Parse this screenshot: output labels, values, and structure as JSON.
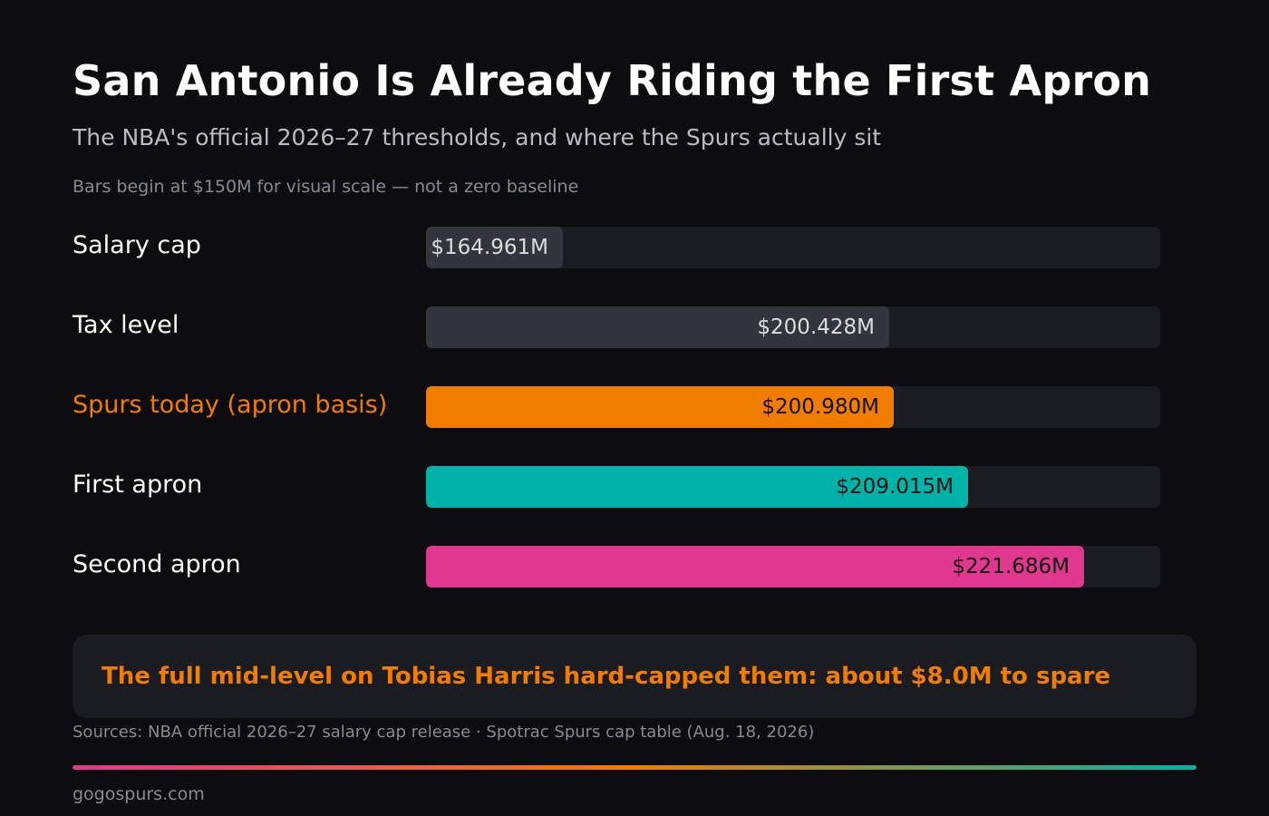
{
  "chart_data": {
    "type": "bar",
    "orientation": "horizontal",
    "title": "San Antonio Is Already Riding the First Apron",
    "subtitle": "The NBA's official 2026–27 thresholds, and where the Spurs actually sit",
    "note": "Bars begin at $150M for visual scale — not a zero baseline",
    "categories": [
      "Salary cap",
      "Tax level",
      "Spurs today (apron basis)",
      "First apron",
      "Second apron"
    ],
    "values": [
      164.961,
      200.428,
      200.98,
      209.015,
      221.686
    ],
    "value_labels": [
      "$164.961M",
      "$200.428M",
      "$200.980M",
      "$209.015M",
      "$221.686M"
    ],
    "unit": "$M",
    "xlim": [
      150,
      230
    ],
    "colors": [
      "#33353d",
      "#33353d",
      "#f07d00",
      "#00b3a8",
      "#e0388f"
    ],
    "label_colors": [
      "#dcdde2",
      "#dcdde2",
      "#111111",
      "#111111",
      "#111111"
    ],
    "highlight_index": 2,
    "highlight_color": "#f07d00",
    "track_color": "#1b1c22",
    "grid": false,
    "legend": "none"
  },
  "callout": {
    "text": "The full mid-level on Tobias Harris hard-capped them: about $8.0M to spare"
  },
  "footer": {
    "sources": "Sources: NBA official 2026–27 salary cap release · Spotrac Spurs cap table (Aug. 18, 2026)",
    "site": "gogospurs.com",
    "gradient_colors": [
      "#e0388f",
      "#f07d00",
      "#00b3a8"
    ]
  }
}
